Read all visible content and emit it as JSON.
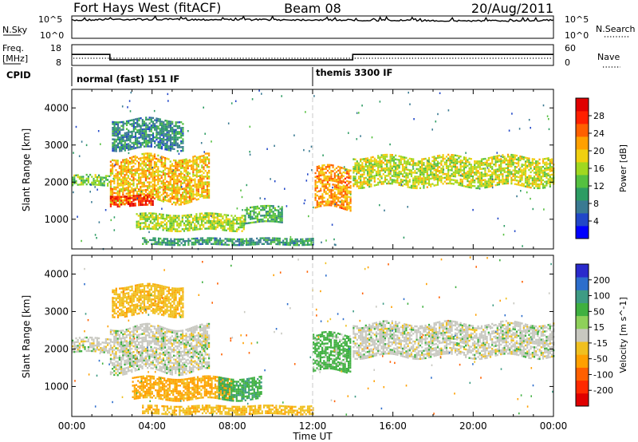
{
  "header": {
    "station": "Fort Hays West (fitACF)",
    "beam": "Beam 08",
    "date": "20/Aug/2011"
  },
  "top_panels": {
    "noise": {
      "left_label": "N.Sky",
      "right_label": "N.Search",
      "left_ticks": [
        "10^5",
        "10^0"
      ],
      "right_ticks": [
        "10^5",
        "10^0"
      ]
    },
    "freq": {
      "left_label_line1": "Freq.",
      "left_label_line2": "[MHz]",
      "right_label": "Nave",
      "left_ticks": [
        "18",
        "8"
      ],
      "right_ticks": [
        "60",
        "0"
      ]
    },
    "cpid": {
      "label": "CPID",
      "modes": [
        "normal (fast) 151 IF",
        "themis 3300 IF"
      ]
    }
  },
  "x_axis": {
    "label": "Time UT",
    "tick_labels": [
      "00:00",
      "04:00",
      "08:00",
      "12:00",
      "16:00",
      "20:00",
      "00:00"
    ]
  },
  "y_axis": {
    "label": "Slant Range [km]",
    "tick_labels": [
      "4000",
      "3000",
      "2000",
      "1000"
    ]
  },
  "power_colorbar": {
    "label": "Power [dB]",
    "tick_labels": [
      "28",
      "24",
      "20",
      "16",
      "12",
      "8",
      "4"
    ],
    "colors": [
      "#0000ff",
      "#2147c8",
      "#3a7a92",
      "#2d9c63",
      "#55c040",
      "#a0d820",
      "#f0d010",
      "#ffa000",
      "#ff6000",
      "#ff2000",
      "#e00000"
    ]
  },
  "velocity_colorbar": {
    "label": "Velocity [m s^-1]",
    "tick_labels": [
      "200",
      "100",
      "50",
      "15",
      "-15",
      "-50",
      "-100",
      "-200"
    ],
    "colors": [
      "#2a2acc",
      "#2d6ecc",
      "#3e9b84",
      "#3fb040",
      "#8ed05a",
      "#c8c8c0",
      "#f0c020",
      "#ffa000",
      "#ff6000",
      "#ff2a00",
      "#e00000"
    ]
  },
  "chart_data": [
    {
      "type": "line",
      "title": "Fort Hays West (fitACF)",
      "series": [
        {
          "name": "N.Sky",
          "x": [
            0,
            1.8,
            6,
            12,
            14,
            18,
            21,
            24
          ],
          "values": [
            10000,
            18000,
            16000,
            14000,
            12000,
            9000,
            8000,
            11000
          ]
        },
        {
          "name": "N.Search",
          "x": [
            0,
            24
          ],
          "values": [
            1,
            1
          ]
        }
      ],
      "xlabel": "Time UT",
      "xlim": [
        0,
        24
      ],
      "ylim": [
        1,
        100000
      ],
      "yscale": "log"
    },
    {
      "type": "line",
      "series": [
        {
          "name": "Freq.",
          "x": [
            0,
            1.9,
            1.9,
            14,
            14,
            24
          ],
          "values": [
            13.3,
            13.3,
            10.7,
            10.7,
            13.3,
            13.3
          ]
        },
        {
          "name": "Nave",
          "x": [
            0,
            24
          ],
          "values": [
            15,
            15
          ]
        }
      ],
      "ylabel": "Freq. [MHz]",
      "xlim": [
        0,
        24
      ],
      "ylim": [
        8,
        18
      ]
    },
    {
      "type": "heatmap",
      "ylabel": "Slant Range [km]",
      "xlabel": "Time UT",
      "xlim": [
        0,
        24
      ],
      "ylim": [
        200,
        4500
      ],
      "value_label": "Power [dB]",
      "value_ticks": [
        4,
        8,
        12,
        16,
        20,
        24,
        28
      ],
      "regions": [
        {
          "t0": 0.0,
          "t1": 1.9,
          "r0": 1900,
          "r1": 2200,
          "power": 14
        },
        {
          "t0": 1.9,
          "t1": 6.8,
          "r0": 1500,
          "r1": 2700,
          "power": 20
        },
        {
          "t0": 1.9,
          "t1": 4.0,
          "r0": 1350,
          "r1": 1650,
          "power": 27
        },
        {
          "t0": 2.0,
          "t1": 5.5,
          "r0": 2900,
          "r1": 3700,
          "power": 9
        },
        {
          "t0": 3.2,
          "t1": 8.6,
          "r0": 700,
          "r1": 1150,
          "power": 16
        },
        {
          "t0": 8.6,
          "t1": 10.5,
          "r0": 900,
          "r1": 1350,
          "power": 12
        },
        {
          "t0": 3.5,
          "t1": 12.0,
          "r0": 300,
          "r1": 500,
          "power": 10
        },
        {
          "t0": 12.1,
          "t1": 13.9,
          "r0": 1300,
          "r1": 2400,
          "power": 22
        },
        {
          "t0": 14.0,
          "t1": 24.0,
          "r0": 1900,
          "r1": 2700,
          "power": 17
        }
      ]
    },
    {
      "type": "heatmap",
      "ylabel": "Slant Range [km]",
      "xlabel": "Time UT",
      "xlim": [
        0,
        24
      ],
      "ylim": [
        200,
        4500
      ],
      "value_label": "Velocity [m s^-1]",
      "value_ticks": [
        -200,
        -100,
        -50,
        -15,
        15,
        50,
        100,
        200
      ],
      "regions": [
        {
          "t0": 0.0,
          "t1": 1.9,
          "r0": 1900,
          "r1": 2300,
          "velocity": 0
        },
        {
          "t0": 1.9,
          "t1": 6.8,
          "r0": 1400,
          "r1": 2600,
          "velocity": 0
        },
        {
          "t0": 2.0,
          "t1": 5.5,
          "r0": 2900,
          "r1": 3700,
          "velocity": -40
        },
        {
          "t0": 3.0,
          "t1": 8.0,
          "r0": 650,
          "r1": 1250,
          "velocity": -60
        },
        {
          "t0": 7.3,
          "t1": 9.4,
          "r0": 650,
          "r1": 1250,
          "velocity": 40
        },
        {
          "t0": 3.5,
          "t1": 12.0,
          "r0": 280,
          "r1": 500,
          "velocity": -40
        },
        {
          "t0": 12.0,
          "t1": 13.9,
          "r0": 1400,
          "r1": 2400,
          "velocity": 30
        },
        {
          "t0": 14.0,
          "t1": 24.0,
          "r0": 1800,
          "r1": 2700,
          "velocity": 0
        }
      ]
    }
  ]
}
